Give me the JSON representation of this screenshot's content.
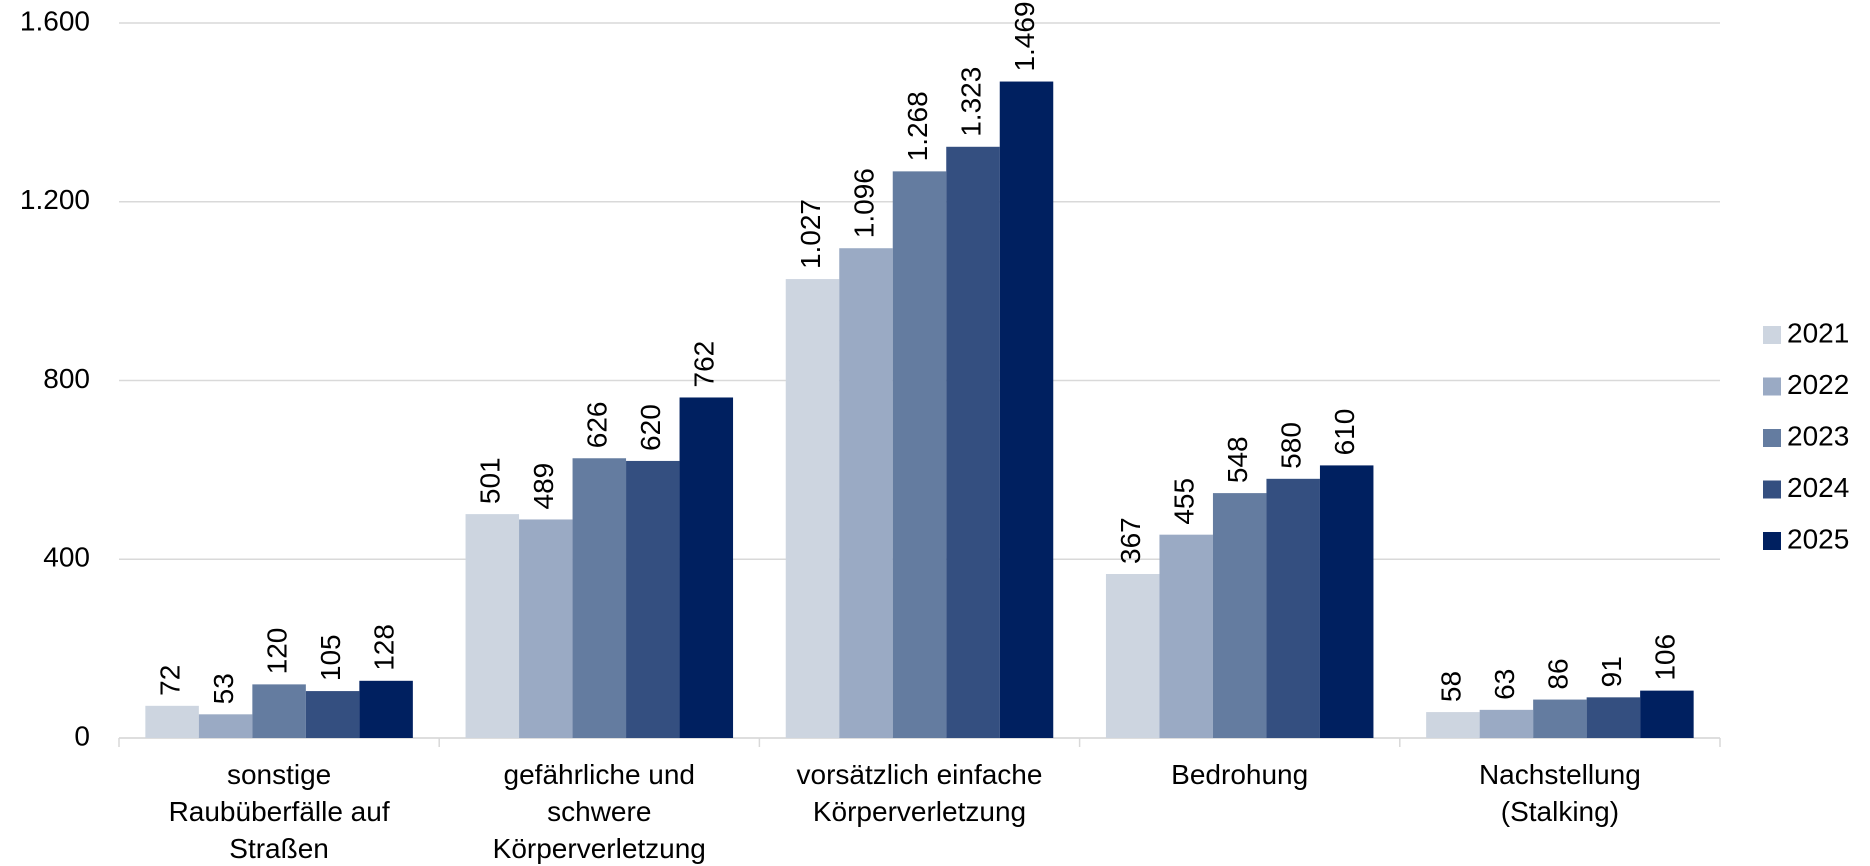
{
  "chart_data": {
    "type": "bar",
    "categories": [
      "sonstige\nRaubüberfälle auf\nStraßen",
      "gefährliche und\nschwere\nKörperverletzung",
      "vorsätzlich einfache\nKörperverletzung",
      "Bedrohung",
      "Nachstellung\n(Stalking)"
    ],
    "series": [
      {
        "name": "2021",
        "color": "#cdd5e0",
        "values": [
          72,
          501,
          1027,
          367,
          58
        ],
        "value_labels": [
          "72",
          "501",
          "1.027",
          "367",
          "58"
        ]
      },
      {
        "name": "2022",
        "color": "#9aaac4",
        "values": [
          53,
          489,
          1096,
          455,
          63
        ],
        "value_labels": [
          "53",
          "489",
          "1.096",
          "455",
          "63"
        ]
      },
      {
        "name": "2023",
        "color": "#647ca0",
        "values": [
          120,
          626,
          1268,
          548,
          86
        ],
        "value_labels": [
          "120",
          "626",
          "1.268",
          "548",
          "86"
        ]
      },
      {
        "name": "2024",
        "color": "#344f80",
        "values": [
          105,
          620,
          1323,
          580,
          91
        ],
        "value_labels": [
          "105",
          "620",
          "1.323",
          "580",
          "91"
        ]
      },
      {
        "name": "2025",
        "color": "#002060",
        "values": [
          128,
          762,
          1469,
          610,
          106
        ],
        "value_labels": [
          "128",
          "762",
          "1.469",
          "610",
          "106"
        ]
      }
    ],
    "ylim": [
      0,
      1600
    ],
    "yticks": [
      0,
      400,
      800,
      {
        "value": 1200,
        "label": "1.200"
      },
      {
        "value": 1600,
        "label": "1.600"
      }
    ],
    "grid": true,
    "legend": "right"
  }
}
